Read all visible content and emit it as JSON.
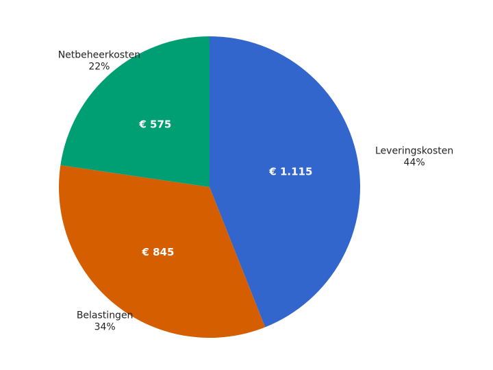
{
  "chart_data": {
    "type": "pie",
    "title": "",
    "start_angle_deg": 0,
    "direction": "clockwise",
    "slices": [
      {
        "name": "Leveringskosten",
        "value_label": "€ 1.115",
        "value": 1115,
        "percent_label": "44%",
        "color": "#3366cc"
      },
      {
        "name": "Belastingen",
        "value_label": "€ 845",
        "value": 845,
        "percent_label": "34%",
        "color": "#d55e00"
      },
      {
        "name": "Netbeheerkosten",
        "value_label": "€ 575",
        "value": 575,
        "percent_label": "22%",
        "color": "#009e73"
      }
    ]
  }
}
